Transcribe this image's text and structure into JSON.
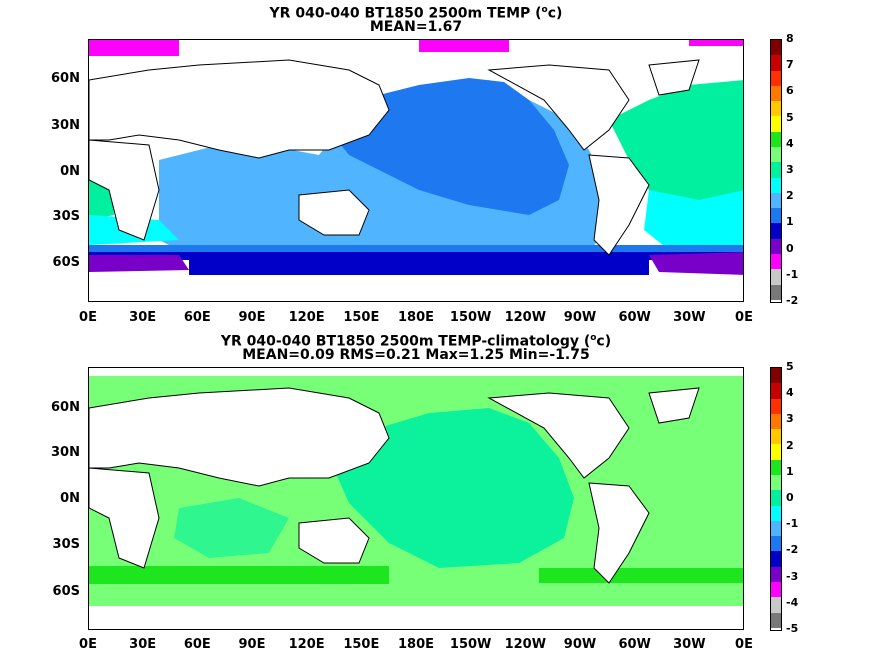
{
  "panels": [
    {
      "title_line1": "YR 040-040 BT1850 2500m TEMP (",
      "title_sup": "o",
      "title_end": "c)",
      "title_line2": "MEAN=1.67",
      "colorbar_labels": [
        "8",
        "7",
        "6",
        "5",
        "4",
        "3",
        "2",
        "1",
        "0",
        "-1",
        "-2"
      ],
      "colorbar_colors": [
        "#800000",
        "#c80000",
        "#ff3000",
        "#ff7800",
        "#ffc800",
        "#ffff00",
        "#1ee61e",
        "#78ff78",
        "#00f0a0",
        "#00ffff",
        "#50b4ff",
        "#1e78f0",
        "#0000c8",
        "#7800c8",
        "#ff00ff",
        "#c8c8c8",
        "#787878"
      ]
    },
    {
      "title_line1": "YR 040-040 BT1850 2500m TEMP-climatology (",
      "title_sup": "o",
      "title_end": "c)",
      "title_line2": "MEAN=0.09   RMS=0.21   Max=1.25   Min=-1.75",
      "colorbar_labels": [
        "5",
        "4",
        "3",
        "2",
        "1",
        "0",
        "-1",
        "-2",
        "-3",
        "-4",
        "-5"
      ],
      "colorbar_colors": [
        "#800000",
        "#c80000",
        "#ff3000",
        "#ff7800",
        "#ffc800",
        "#ffff00",
        "#1ee61e",
        "#78ff78",
        "#00f0a0",
        "#00ffff",
        "#50b4ff",
        "#1e78f0",
        "#0000c8",
        "#7800c8",
        "#ff00ff",
        "#c8c8c8",
        "#787878"
      ]
    }
  ],
  "axes": {
    "lat_labels": [
      "60N",
      "30N",
      "0N",
      "30S",
      "60S"
    ],
    "lon_labels": [
      "0E",
      "30E",
      "60E",
      "90E",
      "120E",
      "150E",
      "180E",
      "150W",
      "120W",
      "90W",
      "60W",
      "30W",
      "0E"
    ]
  }
}
